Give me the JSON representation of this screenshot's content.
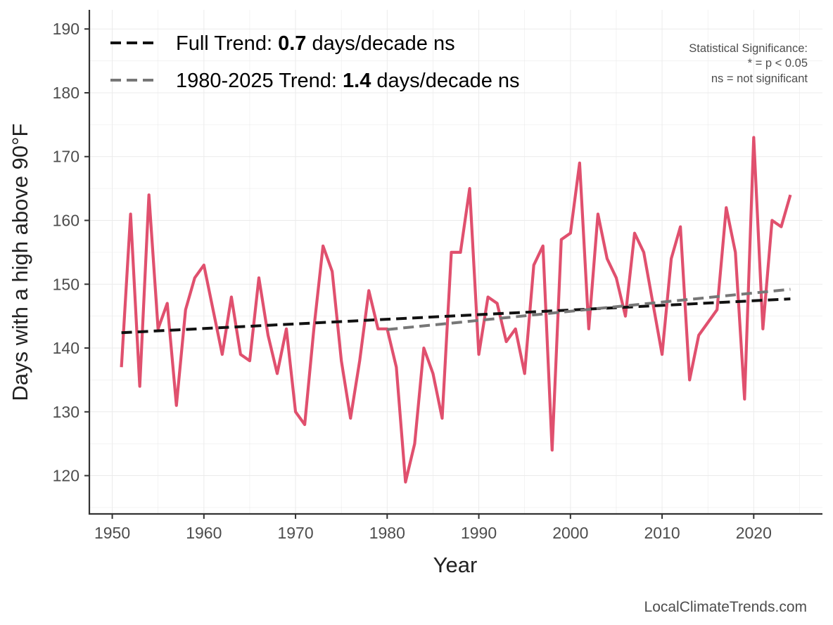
{
  "chart_data": {
    "type": "line",
    "xlabel": "Year",
    "ylabel": "Days with a high above 90°F",
    "xlim": [
      1947.5,
      2027.5
    ],
    "ylim": [
      114,
      193
    ],
    "xticks": [
      1950,
      1960,
      1970,
      1980,
      1990,
      2000,
      2010,
      2020
    ],
    "yticks": [
      120,
      130,
      140,
      150,
      160,
      170,
      180,
      190
    ],
    "grid": true,
    "legend_position": "top-left",
    "series": [
      {
        "color": "#e0506e",
        "style": "solid",
        "x": [
          1951,
          1952,
          1953,
          1954,
          1955,
          1956,
          1957,
          1958,
          1959,
          1960,
          1961,
          1962,
          1963,
          1964,
          1965,
          1966,
          1967,
          1968,
          1969,
          1970,
          1971,
          1972,
          1973,
          1974,
          1975,
          1976,
          1977,
          1978,
          1979,
          1980,
          1981,
          1982,
          1983,
          1984,
          1985,
          1986,
          1987,
          1988,
          1989,
          1990,
          1991,
          1992,
          1993,
          1994,
          1995,
          1996,
          1997,
          1998,
          1999,
          2000,
          2001,
          2002,
          2003,
          2004,
          2005,
          2006,
          2007,
          2008,
          2009,
          2010,
          2011,
          2012,
          2013,
          2014,
          2015,
          2016,
          2017,
          2018,
          2019,
          2020,
          2021,
          2022,
          2023,
          2024
        ],
        "values": [
          137,
          161,
          134,
          164,
          143,
          147,
          131,
          146,
          151,
          153,
          146,
          139,
          148,
          139,
          138,
          151,
          142,
          136,
          143,
          130,
          128,
          143,
          156,
          152,
          138,
          129,
          138,
          149,
          143,
          143,
          137,
          119,
          125,
          140,
          136,
          129,
          155,
          155,
          165,
          139,
          148,
          147,
          141,
          143,
          136,
          153,
          156,
          124,
          157,
          158,
          169,
          143,
          161,
          154,
          151,
          145,
          158,
          155,
          147,
          139,
          154,
          159,
          135,
          142,
          144,
          146,
          162,
          155,
          132,
          173,
          143,
          160,
          159,
          164
        ]
      },
      {
        "name": "Full Trend: ",
        "value_label": "0.7",
        "unit_label": " days/decade ns",
        "color": "#111111",
        "style": "dashed",
        "x": [
          1951,
          2024
        ],
        "values": [
          142.4,
          147.7
        ]
      },
      {
        "name": "1980-2025 Trend: ",
        "value_label": "1.4",
        "unit_label": " days/decade ns",
        "color": "#777777",
        "style": "dashed",
        "x": [
          1980,
          2024
        ],
        "values": [
          142.9,
          149.2
        ]
      }
    ],
    "annotation": [
      "Statistical Significance:",
      "* = p < 0.05",
      "ns = not significant"
    ],
    "source": "LocalClimateTrends.com"
  }
}
